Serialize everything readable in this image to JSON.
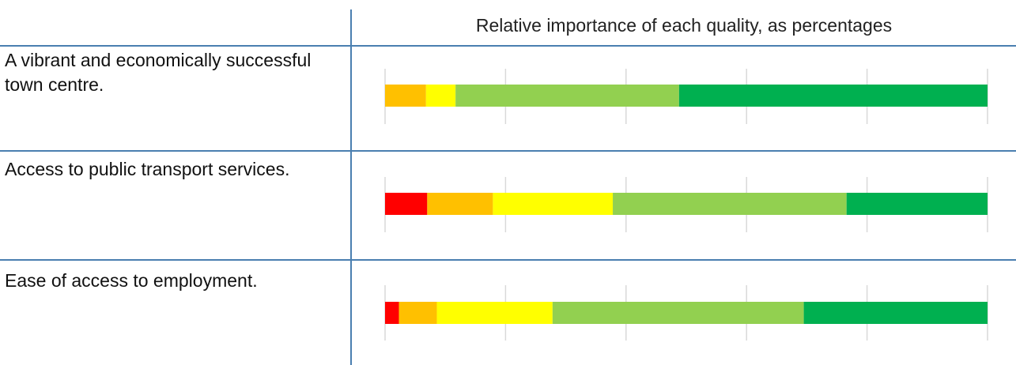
{
  "header": {
    "title": "Relative importance of each quality, as percentages"
  },
  "rows": [
    {
      "label": "A vibrant and economically successful town centre."
    },
    {
      "label": "Access to public transport services."
    },
    {
      "label": "Ease of access to employment."
    }
  ],
  "colors": {
    "rule": "#4a7fb0",
    "gridline": "#d9d9d9",
    "segments": [
      "#ff0000",
      "#ffc000",
      "#ffff00",
      "#92d050",
      "#00b050"
    ]
  },
  "chart_data": {
    "type": "bar",
    "orientation": "horizontal",
    "stacked": true,
    "normalized": true,
    "xlim": [
      0,
      100
    ],
    "title": "Relative importance of each quality, as percentages",
    "categories": [
      "A vibrant and economically successful town centre.",
      "Access to public transport services.",
      "Ease of access to employment."
    ],
    "series": [
      {
        "color": "#ff0000",
        "values": [
          0,
          7,
          2.3
        ]
      },
      {
        "color": "#ffc000",
        "values": [
          6.8,
          10.9,
          6.3
        ]
      },
      {
        "color": "#ffff00",
        "values": [
          4.9,
          19.9,
          19.2
        ]
      },
      {
        "color": "#92d050",
        "values": [
          37.1,
          38.8,
          41.7
        ]
      },
      {
        "color": "#00b050",
        "values": [
          51.2,
          23.4,
          30.5
        ]
      }
    ],
    "gridlines": true,
    "legend": "none"
  }
}
